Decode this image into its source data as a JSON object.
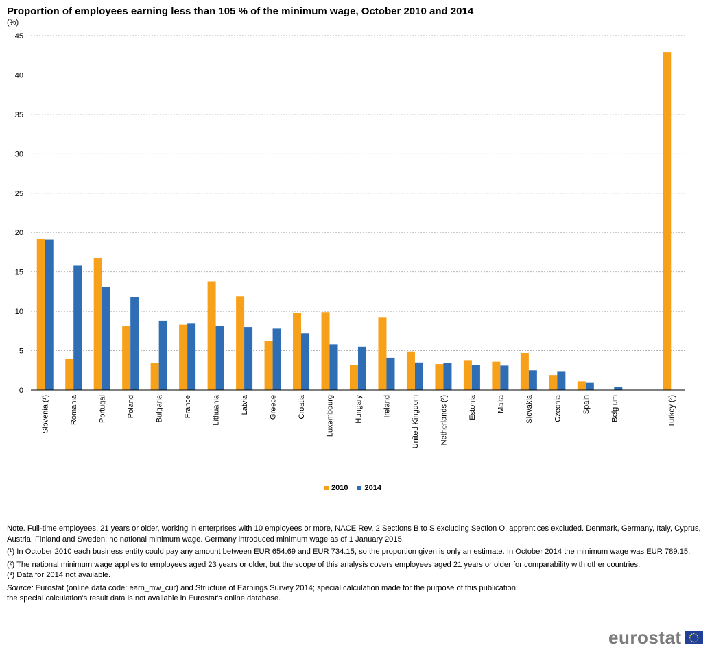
{
  "title": "Proportion of employees earning less than 105 % of the minimum wage, October 2010 and 2014",
  "unit_label": "(%)",
  "colors": {
    "s2010": "#f7a11a",
    "s2014": "#2f6db5",
    "grid": "#b5b5b5",
    "axis": "#000000"
  },
  "chart_data": {
    "type": "bar",
    "categories": [
      "Slovenia (¹)",
      "Romania",
      "Portugal",
      "Poland",
      "Bulgaria",
      "France",
      "Lithuania",
      "Latvia",
      "Greece",
      "Croatia",
      "Luxembourg",
      "Hungary",
      "Ireland",
      "United Kingdom",
      "Netherlands (²)",
      "Estonia",
      "Malta",
      "Slovakia",
      "Czechia",
      "Spain",
      "Belgium",
      "",
      "Turkey (³)"
    ],
    "series": [
      {
        "name": "2010",
        "values": [
          19.2,
          4.0,
          16.8,
          8.1,
          3.4,
          8.3,
          13.8,
          11.9,
          6.2,
          9.8,
          9.9,
          3.2,
          9.2,
          4.9,
          3.3,
          3.8,
          3.6,
          4.7,
          1.9,
          1.1,
          null,
          null,
          42.9
        ]
      },
      {
        "name": "2014",
        "values": [
          19.1,
          15.8,
          13.1,
          11.8,
          8.8,
          8.5,
          8.1,
          8.0,
          7.8,
          7.2,
          5.8,
          5.5,
          4.1,
          3.5,
          3.4,
          3.2,
          3.1,
          2.5,
          2.4,
          0.9,
          0.4,
          null,
          null
        ]
      }
    ],
    "yticks": [
      0,
      5,
      10,
      15,
      20,
      25,
      30,
      35,
      40,
      45
    ],
    "ylim": [
      0,
      45
    ],
    "grid": true,
    "legend_position": "bottom-center"
  },
  "notes": {
    "note": "Note. Full-time employees, 21 years or older, working in enterprises with 10 employees or more, NACE Rev. 2 Sections B to S excluding Section O, apprentices excluded. Denmark, Germany, Italy, Cyprus, Austria, Finland and Sweden: no national minimum wage. Germany introduced minimum wage as of 1 January 2015.",
    "fn1": "(¹) In October 2010 each business entity could pay any amount between EUR 654.69 and EUR 734.15, so the proportion given is only an estimate. In October 2014 the minimum wage was EUR 789.15.",
    "fn2": "(²) The national minimum wage applies to employees aged 23 years or older, but the scope of this analysis covers employees aged 21 years or older for comparability with other countries.",
    "fn3": "(³) Data for 2014 not available.",
    "source_label": "Source:",
    "source_text": "Eurostat (online data code: earn_mw_cur) and Structure of Earnings Survey 2014; special calculation made for the purpose of this publication;",
    "source_text2": "the special calculation's result data is not available in Eurostat's online database."
  },
  "logo_text": "eurostat"
}
